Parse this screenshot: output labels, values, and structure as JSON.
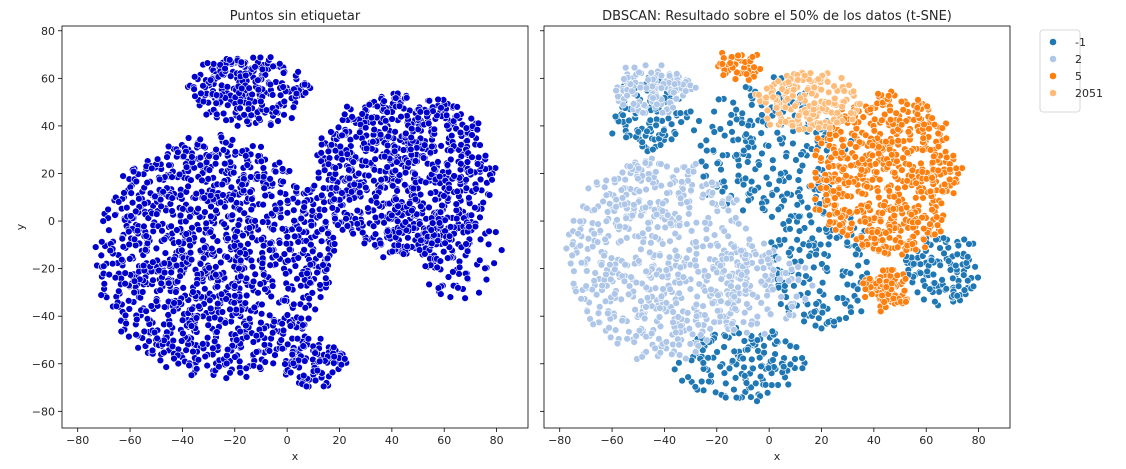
{
  "chart_data": [
    {
      "type": "scatter",
      "title": "Puntos sin etiquetar",
      "xlabel": "x",
      "ylabel": "y",
      "xlim": [
        -86,
        92
      ],
      "ylim": [
        -87,
        82
      ],
      "xticks": [
        "−80",
        "−60",
        "−40",
        "−20",
        "0",
        "20",
        "40",
        "60",
        "80"
      ],
      "yticks": [
        "−80",
        "−60",
        "−40",
        "−20",
        "0",
        "20",
        "40",
        "60",
        "80"
      ],
      "series": [
        {
          "color": "#0000cc",
          "blobs": [
            {
              "cx": -28,
              "cy": -15,
              "rx": 45,
              "ry": 50,
              "weight": 0.5
            },
            {
              "cx": 45,
              "cy": 20,
              "rx": 34,
              "ry": 34,
              "weight": 0.32
            },
            {
              "cx": -15,
              "cy": 55,
              "rx": 22,
              "ry": 14,
              "weight": 0.1
            },
            {
              "cx": 10,
              "cy": -60,
              "rx": 12,
              "ry": 10,
              "weight": 0.04
            },
            {
              "cx": 65,
              "cy": -15,
              "rx": 15,
              "ry": 20,
              "weight": 0.04
            }
          ]
        }
      ]
    },
    {
      "type": "scatter",
      "title": "DBSCAN: Resultado sobre el 50% de los datos (t-SNE)",
      "xlabel": "x",
      "xlim": [
        -86,
        92
      ],
      "ylim": [
        -87,
        82
      ],
      "xticks": [
        "−80",
        "−60",
        "−40",
        "−20",
        "0",
        "20",
        "40",
        "60",
        "80"
      ],
      "legend": {
        "placement": "upper right outside"
      },
      "series": [
        {
          "name": "-1",
          "color": "#1f77b4",
          "blobs": [
            {
              "cx": 0,
              "cy": 30,
              "rx": 30,
              "ry": 30,
              "weight": 0.3
            },
            {
              "cx": -45,
              "cy": 45,
              "rx": 14,
              "ry": 16,
              "weight": 0.15
            },
            {
              "cx": -10,
              "cy": -60,
              "rx": 25,
              "ry": 15,
              "weight": 0.2
            },
            {
              "cx": 20,
              "cy": -20,
              "rx": 20,
              "ry": 25,
              "weight": 0.2
            },
            {
              "cx": 65,
              "cy": -20,
              "rx": 15,
              "ry": 15,
              "weight": 0.15
            }
          ]
        },
        {
          "name": "2",
          "color": "#aec7e8",
          "blobs": [
            {
              "cx": -42,
              "cy": -15,
              "rx": 35,
              "ry": 42,
              "weight": 0.7
            },
            {
              "cx": -45,
              "cy": 55,
              "rx": 15,
              "ry": 10,
              "weight": 0.15
            },
            {
              "cx": -5,
              "cy": -30,
              "rx": 20,
              "ry": 20,
              "weight": 0.15
            }
          ]
        },
        {
          "name": "5",
          "color": "#ff7f0e",
          "blobs": [
            {
              "cx": 45,
              "cy": 20,
              "rx": 28,
              "ry": 34,
              "weight": 0.82
            },
            {
              "cx": -12,
              "cy": 65,
              "rx": 8,
              "ry": 5,
              "weight": 0.06
            },
            {
              "cx": 45,
              "cy": -28,
              "rx": 8,
              "ry": 8,
              "weight": 0.12
            }
          ]
        },
        {
          "name": "2051",
          "color": "#ffbb78",
          "blobs": [
            {
              "cx": 15,
              "cy": 50,
              "rx": 20,
              "ry": 12,
              "weight": 1.0
            }
          ]
        }
      ]
    }
  ]
}
